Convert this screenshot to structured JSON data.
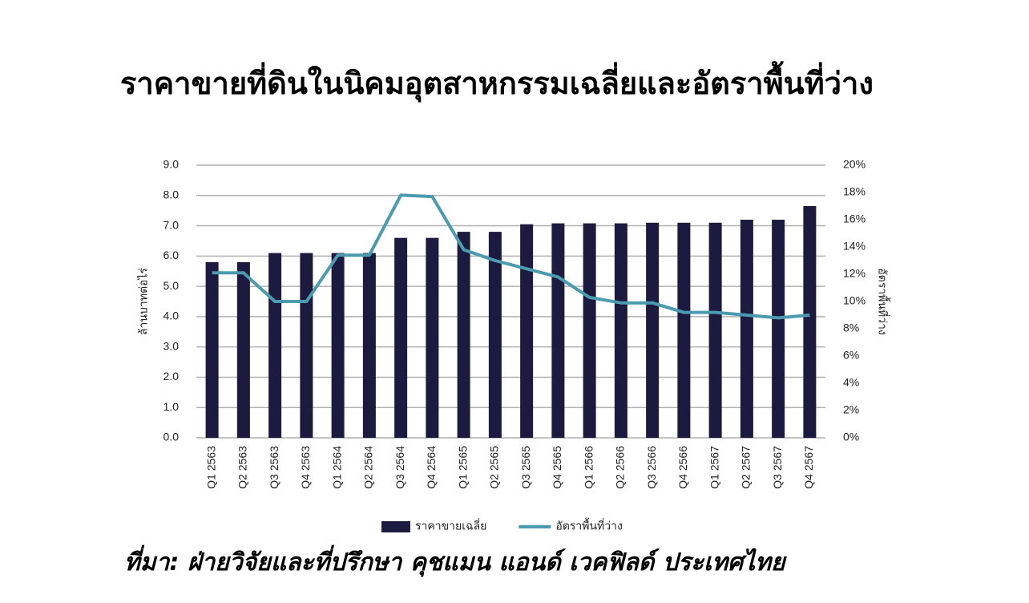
{
  "chart_data": {
    "type": "bar",
    "title": "ราคาขายที่ดินในนิคมอุตสาหกรรมเฉลี่ยและอัตราพื้นที่ว่าง",
    "source": "ที่มา: ฝ่ายวิจัยและที่ปรึกษา คุชแมน แอนด์ เวคฟิลด์ ประเทศไทย",
    "y_label": "ล้านบาทต่อไร่",
    "y2_label": "อัตราพื้นที่ว่าง",
    "categories": [
      "Q1 2563",
      "Q2 2563",
      "Q3 2563",
      "Q4 2563",
      "Q1 2564",
      "Q2 2564",
      "Q3 2564",
      "Q4 2564",
      "Q1 2565",
      "Q2 2565",
      "Q3 2565",
      "Q4 2565",
      "Q1 2566",
      "Q2 2566",
      "Q3 2566",
      "Q4 2566",
      "Q1 2567",
      "Q2 2567",
      "Q3 2567",
      "Q4 2567"
    ],
    "series": [
      {
        "name": "ราคาขายเฉลี่ย",
        "type": "bar",
        "color": "#1c1a3f",
        "values": [
          5.8,
          5.8,
          6.1,
          6.1,
          6.1,
          6.1,
          6.6,
          6.6,
          6.8,
          6.8,
          7.05,
          7.08,
          7.08,
          7.08,
          7.1,
          7.1,
          7.1,
          7.2,
          7.2,
          7.65
        ]
      },
      {
        "name": "อัตราพื้นที่ว่าง",
        "type": "line",
        "axis": "y2",
        "color": "#4a9ab0",
        "values": [
          12.1,
          12.1,
          10.0,
          10.0,
          13.4,
          13.4,
          17.8,
          17.7,
          13.8,
          13.0,
          12.4,
          11.8,
          10.3,
          9.9,
          9.9,
          9.2,
          9.2,
          9.0,
          8.8,
          9.0
        ]
      }
    ],
    "ylim": [
      0,
      9
    ],
    "yticks": [
      {
        "value": 0,
        "label": "0.0"
      },
      {
        "value": 1,
        "label": "1.0"
      },
      {
        "value": 2,
        "label": "2.0"
      },
      {
        "value": 3,
        "label": "3.0"
      },
      {
        "value": 4,
        "label": "4.0"
      },
      {
        "value": 5,
        "label": "5.0"
      },
      {
        "value": 6,
        "label": "6.0"
      },
      {
        "value": 7,
        "label": "7.0"
      },
      {
        "value": 8,
        "label": "8.0"
      },
      {
        "value": 9,
        "label": "9.0"
      }
    ],
    "y2lim": [
      0,
      20
    ],
    "y2ticks": [
      {
        "value": 0,
        "label": "0%"
      },
      {
        "value": 2,
        "label": "2%"
      },
      {
        "value": 4,
        "label": "4%"
      },
      {
        "value": 6,
        "label": "6%"
      },
      {
        "value": 8,
        "label": "8%"
      },
      {
        "value": 10,
        "label": "10%"
      },
      {
        "value": 12,
        "label": "12%"
      },
      {
        "value": 14,
        "label": "14%"
      },
      {
        "value": 16,
        "label": "16%"
      },
      {
        "value": 18,
        "label": "18%"
      },
      {
        "value": 20,
        "label": "20%"
      }
    ],
    "grid": true
  }
}
